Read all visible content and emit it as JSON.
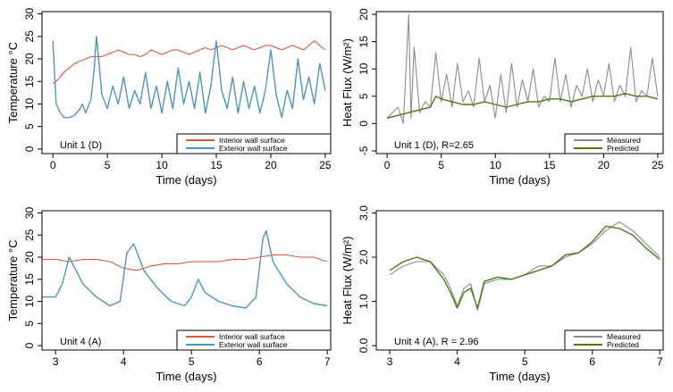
{
  "chart_data": [
    {
      "type": "line",
      "panel_label": "Unit 1 (D)",
      "xlabel": "Time (days)",
      "ylabel": "Temperature °C",
      "xlim": [
        -1,
        25.5
      ],
      "ylim": [
        -1,
        30.5
      ],
      "xticks": [
        0,
        5,
        10,
        15,
        20,
        25
      ],
      "yticks": [
        0,
        5,
        10,
        15,
        20,
        25,
        30
      ],
      "legend_position": "bottom-right",
      "series": [
        {
          "name": "Interior wall surface",
          "color": "#e0573a",
          "x": [
            0,
            0.5,
            1,
            1.5,
            2,
            2.5,
            3,
            3.5,
            4,
            4.5,
            5,
            5.5,
            6,
            6.5,
            7,
            7.5,
            8,
            8.5,
            9,
            9.5,
            10,
            10.5,
            11,
            11.5,
            12,
            12.5,
            13,
            13.5,
            14,
            14.5,
            15,
            15.5,
            16,
            16.5,
            17,
            17.5,
            18,
            18.5,
            19,
            19.5,
            20,
            20.5,
            21,
            21.5,
            22,
            22.5,
            23,
            23.5,
            24,
            24.5,
            25
          ],
          "y": [
            14.5,
            15.5,
            17,
            18,
            19,
            19.5,
            20,
            20.5,
            20.5,
            20.5,
            21,
            21.5,
            22,
            21.5,
            21,
            21,
            20.5,
            21,
            22,
            21.5,
            21,
            21.5,
            22,
            22,
            21.5,
            21,
            21.5,
            22,
            22.5,
            22,
            22.5,
            23,
            22.5,
            22,
            22.5,
            23,
            22.5,
            22,
            22.5,
            23,
            23,
            22.5,
            22,
            22.5,
            23,
            22.5,
            22,
            23,
            24,
            23,
            22
          ]
        },
        {
          "name": "Exterior wall surface",
          "color": "#4b97bd",
          "x": [
            0,
            0.3,
            0.7,
            1,
            1.5,
            2,
            2.5,
            2.7,
            3,
            3.5,
            3.8,
            4,
            4.2,
            4.5,
            5,
            5.5,
            6,
            6.5,
            7,
            7.5,
            8,
            8.5,
            9,
            9.5,
            10,
            10.5,
            11,
            11.5,
            12,
            12.5,
            13,
            13.5,
            14,
            14.5,
            15,
            15.5,
            16,
            16.5,
            17,
            17.5,
            18,
            18.5,
            19,
            19.5,
            20,
            20.5,
            21,
            21.5,
            22,
            22.5,
            23,
            23.5,
            24,
            24.5,
            25
          ],
          "y": [
            24,
            10,
            8,
            7,
            7,
            7.5,
            9,
            10,
            8,
            11,
            18,
            25,
            20,
            12,
            9,
            14,
            10,
            16,
            9,
            13,
            10,
            17,
            9,
            14,
            8,
            15,
            9,
            18,
            10,
            15,
            9,
            17,
            8,
            14,
            24,
            13,
            9,
            16,
            8,
            15,
            9,
            14,
            8,
            13,
            22,
            12,
            7,
            13,
            9,
            20,
            11,
            16,
            10,
            19,
            13
          ]
        }
      ]
    },
    {
      "type": "line",
      "panel_label": "Unit 1 (D), R=2.65",
      "xlabel": "Time (days)",
      "ylabel": "Heat Flux (W/m²)",
      "xlim": [
        -1,
        25.5
      ],
      "ylim": [
        -5.5,
        20.5
      ],
      "xticks": [
        0,
        5,
        10,
        15,
        20,
        25
      ],
      "yticks": [
        -5,
        0,
        5,
        10,
        15,
        20
      ],
      "legend_position": "bottom-right",
      "series": [
        {
          "name": "Measured",
          "color": "#8c8c8c",
          "x": [
            0,
            0.5,
            1,
            1.5,
            2,
            2.2,
            2.5,
            3,
            3.5,
            4,
            4.5,
            5,
            5.5,
            6,
            6.5,
            7,
            7.5,
            8,
            8.5,
            9,
            9.5,
            10,
            10.5,
            11,
            11.5,
            12,
            12.5,
            13,
            13.5,
            14,
            14.5,
            15,
            15.5,
            16,
            16.5,
            17,
            17.5,
            18,
            18.5,
            19,
            19.5,
            20,
            20.5,
            21,
            21.5,
            22,
            22.5,
            23,
            23.5,
            24,
            24.5,
            25
          ],
          "y": [
            1,
            2,
            3,
            0,
            20,
            1,
            14,
            2,
            4,
            3,
            13,
            4,
            9,
            3,
            11,
            4,
            6,
            3,
            12,
            4,
            7,
            1,
            9,
            2,
            11,
            3,
            8,
            4,
            10,
            3,
            5,
            4,
            12,
            4,
            9,
            3,
            7,
            5,
            10,
            4,
            8,
            5,
            11,
            4,
            7,
            5,
            14,
            4,
            6,
            5,
            12,
            5
          ]
        },
        {
          "name": "Predicted",
          "color": "#4a7a14",
          "x": [
            0,
            1,
            2,
            3,
            4,
            4.5,
            5,
            6,
            7,
            8,
            9,
            10,
            11,
            12,
            13,
            14,
            15,
            16,
            17,
            18,
            19,
            20,
            21,
            22,
            23,
            24,
            25
          ],
          "y": [
            1,
            1.5,
            2,
            2.5,
            3,
            5,
            4.5,
            4,
            3.5,
            3.5,
            4,
            3.5,
            3,
            3.5,
            4,
            4,
            4.5,
            4.5,
            4,
            4.5,
            5,
            5,
            5,
            5.5,
            5,
            5,
            4.5
          ]
        }
      ]
    },
    {
      "type": "line",
      "panel_label": "Unit 4 (A)",
      "xlabel": "Time (days)",
      "ylabel": "Temperature °C",
      "xlim": [
        2.8,
        7.05
      ],
      "ylim": [
        -1,
        30.5
      ],
      "xticks": [
        3,
        4,
        5,
        6,
        7
      ],
      "yticks": [
        0,
        5,
        10,
        15,
        20,
        25,
        30
      ],
      "legend_position": "bottom-right",
      "series": [
        {
          "name": "Interior wall surface",
          "color": "#e0573a",
          "x": [
            2.8,
            3,
            3.2,
            3.4,
            3.6,
            3.8,
            4,
            4.2,
            4.4,
            4.6,
            4.8,
            5,
            5.2,
            5.4,
            5.6,
            5.8,
            6,
            6.2,
            6.4,
            6.6,
            6.8,
            7
          ],
          "y": [
            19.5,
            19.5,
            19,
            19.5,
            19.5,
            19,
            17.5,
            17,
            18,
            18.5,
            18.5,
            19,
            19,
            19,
            19.5,
            19.5,
            20,
            20.5,
            20.5,
            20,
            20,
            19
          ]
        },
        {
          "name": "Exterior wall surface",
          "color": "#4b97bd",
          "x": [
            2.8,
            3,
            3.1,
            3.2,
            3.4,
            3.6,
            3.8,
            3.95,
            4.05,
            4.15,
            4.3,
            4.5,
            4.7,
            4.9,
            5,
            5.1,
            5.2,
            5.4,
            5.6,
            5.8,
            5.95,
            6.05,
            6.1,
            6.2,
            6.4,
            6.6,
            6.8,
            7
          ],
          "y": [
            11,
            11,
            14,
            20,
            14,
            11,
            9,
            10,
            21,
            23,
            17,
            13,
            10,
            9,
            11,
            15,
            12,
            10,
            9,
            8.5,
            11,
            24,
            26,
            19,
            14,
            11,
            9.5,
            9
          ]
        }
      ]
    },
    {
      "type": "line",
      "panel_label": "Unit 4 (A), R = 2.96",
      "xlabel": "Time (days)",
      "ylabel": "Heat Flux (W/m²)",
      "xlim": [
        2.8,
        7.05
      ],
      "ylim": [
        -0.1,
        3.05
      ],
      "xticks": [
        3,
        4,
        5,
        6,
        7
      ],
      "yticks": [
        0,
        1,
        2,
        3
      ],
      "ytick_labels": [
        "0.0",
        "1.0",
        "2.0",
        "3.0"
      ],
      "legend_position": "bottom-right",
      "series": [
        {
          "name": "Measured",
          "color": "#8c8c8c",
          "x": [
            3,
            3.2,
            3.4,
            3.6,
            3.8,
            3.9,
            4,
            4.1,
            4.2,
            4.3,
            4.4,
            4.6,
            4.8,
            5,
            5.2,
            5.4,
            5.6,
            5.8,
            6,
            6.2,
            6.4,
            6.6,
            6.8,
            7
          ],
          "y": [
            1.6,
            1.8,
            1.9,
            1.9,
            1.6,
            1.3,
            0.9,
            1.3,
            1.4,
            0.8,
            1.4,
            1.5,
            1.5,
            1.6,
            1.8,
            1.8,
            2.0,
            2.1,
            2.3,
            2.6,
            2.8,
            2.6,
            2.3,
            2.0
          ]
        },
        {
          "name": "Predicted",
          "color": "#4a7a14",
          "x": [
            3,
            3.2,
            3.4,
            3.6,
            3.8,
            3.9,
            4,
            4.1,
            4.2,
            4.3,
            4.4,
            4.6,
            4.8,
            5,
            5.2,
            5.4,
            5.6,
            5.8,
            6,
            6.2,
            6.4,
            6.6,
            6.8,
            7
          ],
          "y": [
            1.7,
            1.9,
            2.0,
            1.9,
            1.5,
            1.2,
            0.85,
            1.2,
            1.3,
            0.85,
            1.45,
            1.55,
            1.5,
            1.6,
            1.7,
            1.8,
            2.05,
            2.1,
            2.35,
            2.7,
            2.65,
            2.5,
            2.2,
            1.95
          ]
        }
      ]
    }
  ]
}
